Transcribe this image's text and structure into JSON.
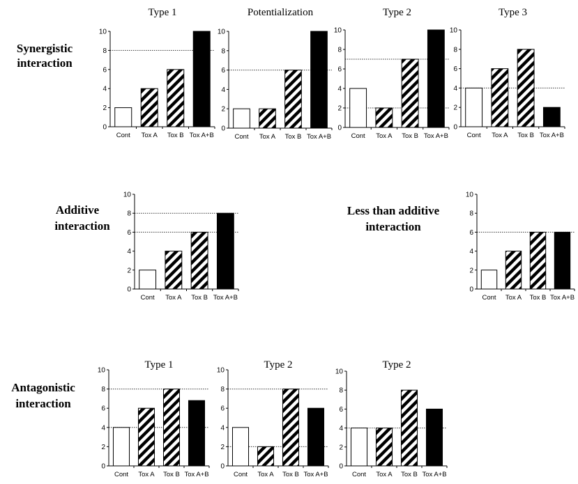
{
  "chart_data": [
    {
      "type": "bar",
      "group": "Synergistic interaction",
      "title": "Type 1",
      "categories": [
        "Cont",
        "Tox A",
        "Tox B",
        "Tox A+B"
      ],
      "values": [
        2,
        4,
        6,
        10
      ],
      "ylim": [
        0,
        10
      ],
      "yticks": [
        "0",
        "2",
        "4",
        "6",
        "8",
        "10"
      ],
      "reference_lines": [
        8
      ],
      "fills": [
        "white",
        "hatch",
        "hatch",
        "solid"
      ]
    },
    {
      "type": "bar",
      "group": "Synergistic interaction",
      "title": "Potentialization",
      "categories": [
        "Cont",
        "Tox A",
        "Tox B",
        "Tox A+B"
      ],
      "values": [
        2,
        2,
        6,
        10
      ],
      "ylim": [
        0,
        10
      ],
      "yticks": [
        "0",
        "2",
        "4",
        "6",
        "8",
        "10"
      ],
      "reference_lines": [
        6
      ],
      "fills": [
        "white",
        "hatch",
        "hatch",
        "solid"
      ]
    },
    {
      "type": "bar",
      "group": "Synergistic interaction",
      "title": "Type 2",
      "categories": [
        "Cont",
        "Tox A",
        "Tox B",
        "Tox A+B"
      ],
      "values": [
        4,
        2,
        7,
        10
      ],
      "ylim": [
        0,
        10
      ],
      "yticks": [
        "0",
        "2",
        "4",
        "6",
        "8",
        "10"
      ],
      "reference_lines": [
        7,
        2
      ],
      "fills": [
        "white",
        "hatch",
        "hatch",
        "solid"
      ]
    },
    {
      "type": "bar",
      "group": "Synergistic interaction",
      "title": "Type 3",
      "categories": [
        "Cont",
        "Tox A",
        "Tox B",
        "Tox A+B"
      ],
      "values": [
        4,
        6,
        8,
        2
      ],
      "ylim": [
        0,
        10
      ],
      "yticks": [
        "0",
        "2",
        "4",
        "6",
        "8",
        "10"
      ],
      "reference_lines": [
        4
      ],
      "fills": [
        "white",
        "hatch",
        "hatch",
        "solid"
      ]
    },
    {
      "type": "bar",
      "group": "Additive interaction",
      "title": "",
      "categories": [
        "Cont",
        "Tox A",
        "Tox B",
        "Tox A+B"
      ],
      "values": [
        2,
        4,
        6,
        8
      ],
      "ylim": [
        0,
        10
      ],
      "yticks": [
        "0",
        "2",
        "4",
        "6",
        "8",
        "10"
      ],
      "reference_lines": [
        8,
        6
      ],
      "fills": [
        "white",
        "hatch",
        "hatch",
        "solid"
      ]
    },
    {
      "type": "bar",
      "group": "Less than additive interaction",
      "title": "",
      "categories": [
        "Cont",
        "Tox A",
        "Tox B",
        "Tox A+B"
      ],
      "values": [
        2,
        4,
        6,
        6
      ],
      "ylim": [
        0,
        10
      ],
      "yticks": [
        "0",
        "2",
        "4",
        "6",
        "8",
        "10"
      ],
      "reference_lines": [
        6
      ],
      "fills": [
        "white",
        "hatch",
        "hatch",
        "solid"
      ]
    },
    {
      "type": "bar",
      "group": "Antagonistic interaction",
      "title": "Type 1",
      "categories": [
        "Cont",
        "Tox A",
        "Tox B",
        "Tox A+B"
      ],
      "values": [
        4,
        6,
        8,
        6.8
      ],
      "ylim": [
        0,
        10
      ],
      "yticks": [
        "0",
        "2",
        "4",
        "6",
        "8",
        "10"
      ],
      "reference_lines": [
        8,
        4
      ],
      "fills": [
        "white",
        "hatch",
        "hatch",
        "solid"
      ]
    },
    {
      "type": "bar",
      "group": "Antagonistic interaction",
      "title": "Type 2",
      "categories": [
        "Cont",
        "Tox A",
        "Tox B",
        "Tox A+B"
      ],
      "values": [
        4,
        2,
        8,
        6
      ],
      "ylim": [
        0,
        10
      ],
      "yticks": [
        "0",
        "2",
        "4",
        "6",
        "8",
        "10"
      ],
      "reference_lines": [
        8,
        2
      ],
      "fills": [
        "white",
        "hatch",
        "hatch",
        "solid"
      ]
    },
    {
      "type": "bar",
      "group": "Antagonistic interaction",
      "title": "Type 2",
      "categories": [
        "Cont",
        "Tox A",
        "Tox B",
        "Tox A+B"
      ],
      "values": [
        4,
        4,
        8,
        6
      ],
      "ylim": [
        0,
        10
      ],
      "yticks": [
        "0",
        "2",
        "4",
        "6",
        "8",
        "10"
      ],
      "reference_lines": [
        4
      ],
      "fills": [
        "white",
        "hatch",
        "hatch",
        "solid"
      ]
    }
  ],
  "row_labels": [
    {
      "line1": "Synergistic",
      "line2": "interaction"
    },
    {
      "line1": "Additive",
      "line2": "interaction"
    },
    {
      "line1": "Less than additive",
      "line2": "interaction"
    },
    {
      "line1": "Antagonistic",
      "line2": "interaction"
    }
  ],
  "colors": {
    "ink": "#000000",
    "background": "#ffffff",
    "reference_line": "#333333"
  }
}
